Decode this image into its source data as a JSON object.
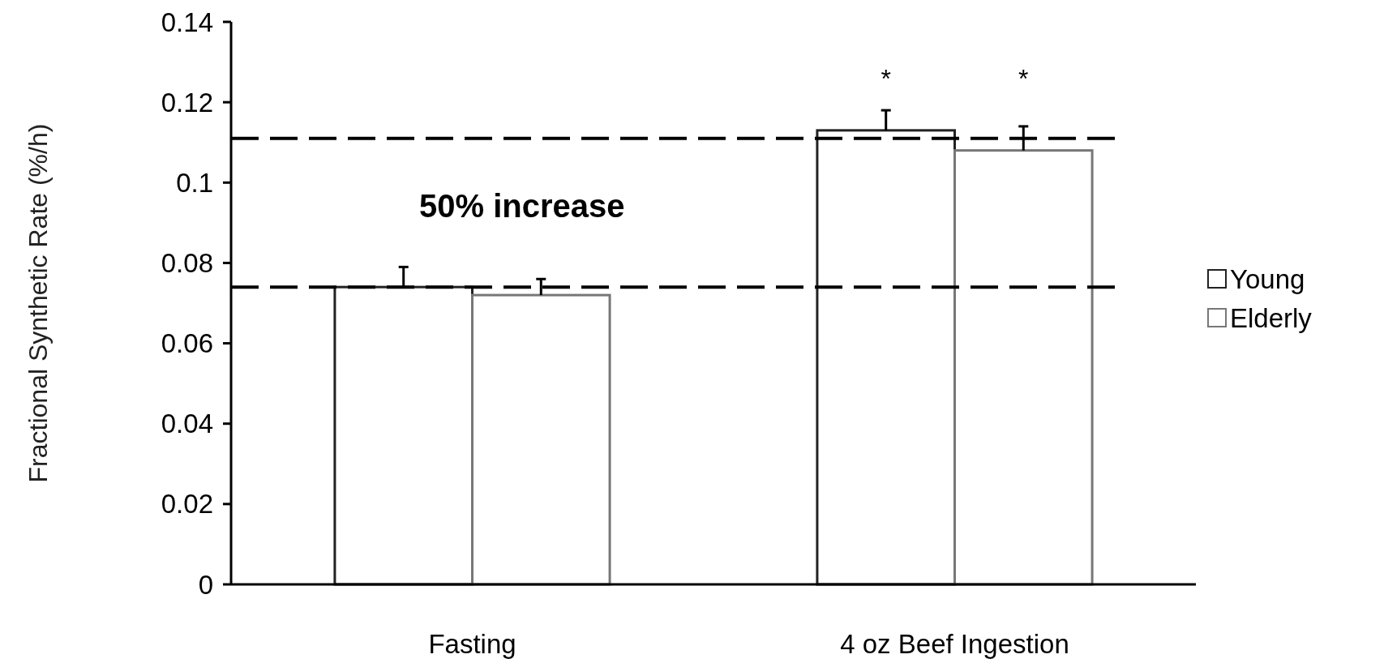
{
  "chart_data": {
    "type": "bar",
    "ylabel": "Fractional Synthetic Rate (%/h)",
    "categories": [
      "Fasting",
      "4 oz Beef Ingestion"
    ],
    "series": [
      {
        "name": "Young",
        "color": "#222222",
        "values": [
          0.074,
          0.113
        ],
        "errors": [
          [
            0.074,
            0.079
          ],
          [
            0.113,
            0.118
          ]
        ]
      },
      {
        "name": "Elderly",
        "color": "#777777",
        "values": [
          0.072,
          0.108
        ],
        "errors": [
          [
            0.072,
            0.076
          ],
          [
            0.108,
            0.114
          ]
        ]
      }
    ],
    "ylim": [
      0,
      0.14
    ],
    "yticks": [
      0,
      0.02,
      0.04,
      0.06,
      0.08,
      0.1,
      0.12,
      0.14
    ],
    "ref_lines": [
      {
        "axis": "y",
        "value": 0.111,
        "color": "#000000",
        "line_style": "dashed"
      },
      {
        "axis": "y",
        "value": 0.074,
        "color": "#000000",
        "line_style": "dashed"
      }
    ],
    "annotations": [
      "50% increase",
      "*",
      "*"
    ],
    "legend": "right",
    "grid": false
  }
}
